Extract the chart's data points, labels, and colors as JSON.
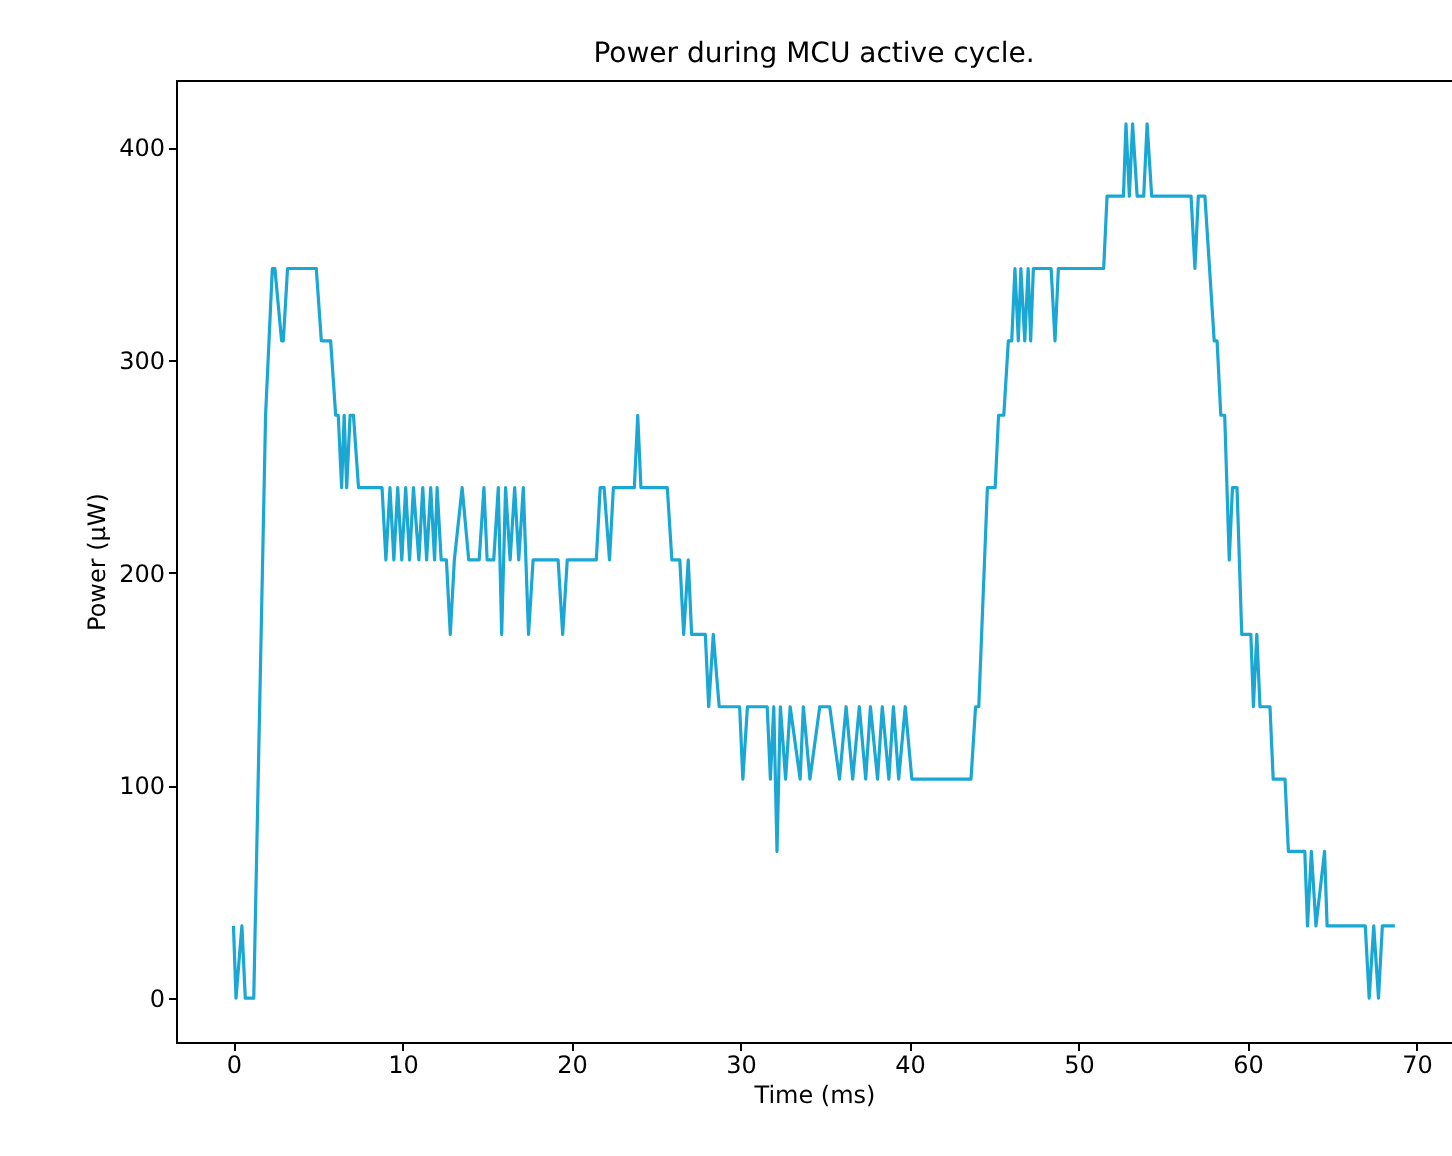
{
  "chart_data": {
    "type": "line",
    "title": "Power during MCU active cycle.",
    "xlabel": "Time (ms)",
    "ylabel": "Power (μW)",
    "xlim": [
      -3.4,
      72.1
    ],
    "ylim": [
      -20.6,
      431.6
    ],
    "xticks": [
      0,
      10,
      20,
      30,
      40,
      50,
      60,
      70
    ],
    "yticks": [
      0,
      100,
      200,
      300,
      400
    ],
    "grid": false,
    "line_style": "solid",
    "series": [
      {
        "color": "#1aa7d4",
        "x": [
          0,
          0.15,
          0.5,
          0.7,
          1.2,
          1.9,
          2.3,
          2.45,
          2.85,
          2.95,
          3.2,
          4.9,
          5.2,
          5.75,
          6.05,
          6.2,
          6.4,
          6.55,
          6.7,
          6.9,
          7.1,
          7.4,
          8.79,
          9.02,
          9.26,
          9.49,
          9.72,
          9.96,
          10.19,
          10.42,
          10.65,
          10.97,
          11.2,
          11.43,
          11.67,
          11.9,
          12.05,
          12.29,
          12.6,
          12.83,
          13.07,
          13.53,
          13.92,
          14.54,
          14.82,
          15.01,
          15.4,
          15.67,
          15.87,
          16.1,
          16.37,
          16.64,
          16.88,
          17.15,
          17.46,
          17.73,
          19.21,
          19.48,
          19.75,
          21.47,
          21.7,
          21.93,
          22.25,
          22.48,
          23.72,
          23.92,
          24.11,
          25.67,
          25.94,
          26.41,
          26.64,
          26.91,
          27.11,
          27.92,
          28.12,
          28.39,
          28.74,
          29.95,
          30.14,
          30.41,
          31.58,
          31.77,
          31.97,
          32.16,
          32.36,
          32.67,
          32.94,
          33.53,
          33.72,
          34.11,
          34.69,
          35.28,
          35.86,
          36.25,
          36.64,
          37.03,
          37.41,
          37.69,
          38.11,
          38.39,
          38.78,
          39.05,
          39.36,
          39.75,
          40.14,
          43.64,
          43.91,
          44.1,
          44.61,
          45.07,
          45.27,
          45.58,
          45.85,
          46.05,
          46.24,
          46.44,
          46.59,
          46.82,
          47.02,
          47.17,
          47.33,
          48.38,
          48.61,
          48.81,
          51.49,
          51.69,
          52.66,
          52.81,
          53.01,
          53.2,
          53.47,
          53.86,
          54.06,
          54.33,
          56.66,
          56.89,
          57.09,
          57.48,
          58.03,
          58.2,
          58.42,
          58.65,
          58.92,
          59.11,
          59.38,
          59.66,
          60.2,
          60.35,
          60.55,
          60.74,
          61.33,
          61.52,
          62.22,
          62.42,
          63.39,
          63.55,
          63.78,
          64.05,
          64.56,
          64.71,
          66.97,
          67.2,
          67.47,
          67.75,
          67.98,
          68.72
        ],
        "values": [
          34,
          0,
          34,
          0,
          0,
          274,
          343,
          343,
          309,
          309,
          343,
          343,
          309,
          309,
          274,
          274,
          240,
          274,
          240,
          274,
          274,
          240,
          240,
          206,
          240,
          206,
          240,
          206,
          240,
          206,
          240,
          206,
          240,
          206,
          240,
          206,
          240,
          206,
          206,
          171,
          206,
          240,
          206,
          206,
          240,
          206,
          206,
          240,
          171,
          240,
          206,
          240,
          206,
          240,
          171,
          206,
          206,
          171,
          206,
          206,
          240,
          240,
          206,
          240,
          240,
          274,
          240,
          240,
          206,
          206,
          171,
          206,
          171,
          171,
          137,
          171,
          137,
          137,
          103,
          137,
          137,
          103,
          137,
          69,
          137,
          103,
          137,
          103,
          137,
          103,
          137,
          137,
          103,
          137,
          103,
          137,
          103,
          137,
          103,
          137,
          103,
          137,
          103,
          137,
          103,
          103,
          137,
          137,
          240,
          240,
          274,
          274,
          309,
          309,
          343,
          309,
          343,
          309,
          343,
          309,
          343,
          343,
          309,
          343,
          343,
          377,
          377,
          411,
          377,
          411,
          377,
          377,
          411,
          377,
          377,
          343,
          377,
          377,
          309,
          309,
          274,
          274,
          206,
          240,
          240,
          171,
          171,
          137,
          171,
          137,
          137,
          103,
          103,
          69,
          69,
          34,
          69,
          34,
          69,
          34,
          34,
          0,
          34,
          0,
          34,
          34
        ]
      }
    ]
  }
}
